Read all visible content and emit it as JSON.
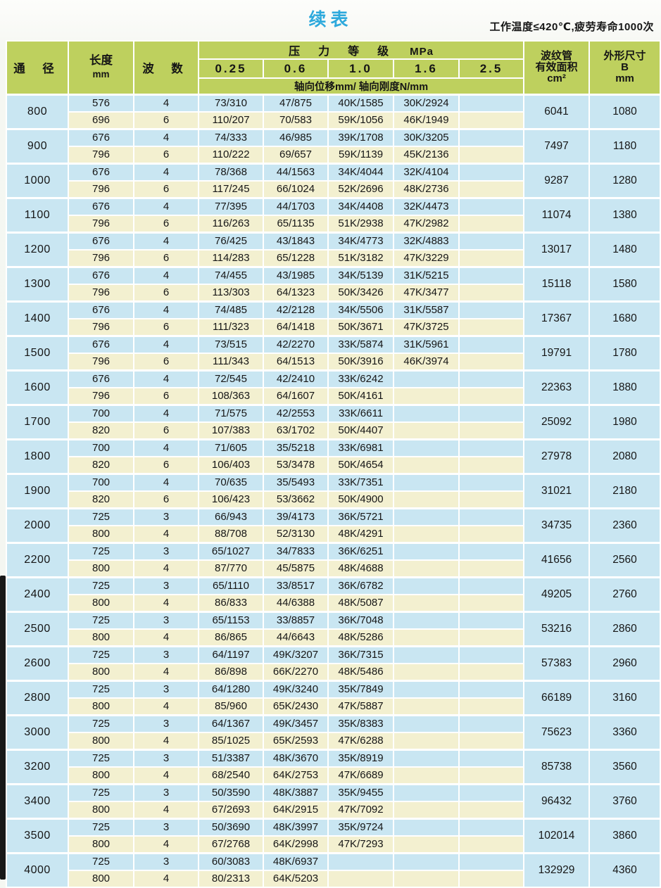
{
  "page": {
    "title": "续表",
    "note": "工作温度≤420℃,疲劳寿命1000次"
  },
  "colors": {
    "header_green": "#bed05e",
    "row_blue": "#c9e6f2",
    "row_yellow": "#f3f0d0",
    "title_blue": "#2da9dc"
  },
  "table": {
    "headers": {
      "dn": "通 径",
      "length": "长度",
      "length_unit": "mm",
      "waves": "波 数",
      "pressure_title": "压力等级",
      "pressure_unit": "MPa",
      "pressure_levels": [
        "0.25",
        "0.6",
        "1.0",
        "1.6",
        "2.5"
      ],
      "sub_note": "轴向位移mm/ 轴向刚度N/mm",
      "area_line1": "波纹管",
      "area_line2": "有效面积",
      "area_unit": "cm²",
      "b_line1": "外形尺寸",
      "b_line2": "B",
      "b_unit": "mm"
    },
    "groups": [
      {
        "dn": "800",
        "area": "6041",
        "b": "1080",
        "rows": [
          {
            "len": "576",
            "waves": "4",
            "p": [
              "73/310",
              "47/875",
              "40K/1585",
              "30K/2924",
              ""
            ]
          },
          {
            "len": "696",
            "waves": "6",
            "p": [
              "110/207",
              "70/583",
              "59K/1056",
              "46K/1949",
              ""
            ]
          }
        ]
      },
      {
        "dn": "900",
        "area": "7497",
        "b": "1180",
        "rows": [
          {
            "len": "676",
            "waves": "4",
            "p": [
              "74/333",
              "46/985",
              "39K/1708",
              "30K/3205",
              ""
            ]
          },
          {
            "len": "796",
            "waves": "6",
            "p": [
              "110/222",
              "69/657",
              "59K/1139",
              "45K/2136",
              ""
            ]
          }
        ]
      },
      {
        "dn": "1000",
        "area": "9287",
        "b": "1280",
        "rows": [
          {
            "len": "676",
            "waves": "4",
            "p": [
              "78/368",
              "44/1563",
              "34K/4044",
              "32K/4104",
              ""
            ]
          },
          {
            "len": "796",
            "waves": "6",
            "p": [
              "117/245",
              "66/1024",
              "52K/2696",
              "48K/2736",
              ""
            ]
          }
        ]
      },
      {
        "dn": "1100",
        "area": "11074",
        "b": "1380",
        "rows": [
          {
            "len": "676",
            "waves": "4",
            "p": [
              "77/395",
              "44/1703",
              "34K/4408",
              "32K/4473",
              ""
            ]
          },
          {
            "len": "796",
            "waves": "6",
            "p": [
              "116/263",
              "65/1135",
              "51K/2938",
              "47K/2982",
              ""
            ]
          }
        ]
      },
      {
        "dn": "1200",
        "area": "13017",
        "b": "1480",
        "rows": [
          {
            "len": "676",
            "waves": "4",
            "p": [
              "76/425",
              "43/1843",
              "34K/4773",
              "32K/4883",
              ""
            ]
          },
          {
            "len": "796",
            "waves": "6",
            "p": [
              "114/283",
              "65/1228",
              "51K/3182",
              "47K/3229",
              ""
            ]
          }
        ]
      },
      {
        "dn": "1300",
        "area": "15118",
        "b": "1580",
        "rows": [
          {
            "len": "676",
            "waves": "4",
            "p": [
              "74/455",
              "43/1985",
              "34K/5139",
              "31K/5215",
              ""
            ]
          },
          {
            "len": "796",
            "waves": "6",
            "p": [
              "113/303",
              "64/1323",
              "50K/3426",
              "47K/3477",
              ""
            ]
          }
        ]
      },
      {
        "dn": "1400",
        "area": "17367",
        "b": "1680",
        "rows": [
          {
            "len": "676",
            "waves": "4",
            "p": [
              "74/485",
              "42/2128",
              "34K/5506",
              "31K/5587",
              ""
            ]
          },
          {
            "len": "796",
            "waves": "6",
            "p": [
              "111/323",
              "64/1418",
              "50K/3671",
              "47K/3725",
              ""
            ]
          }
        ]
      },
      {
        "dn": "1500",
        "area": "19791",
        "b": "1780",
        "rows": [
          {
            "len": "676",
            "waves": "4",
            "p": [
              "73/515",
              "42/2270",
              "33K/5874",
              "31K/5961",
              ""
            ]
          },
          {
            "len": "796",
            "waves": "6",
            "p": [
              "111/343",
              "64/1513",
              "50K/3916",
              "46K/3974",
              ""
            ]
          }
        ]
      },
      {
        "dn": "1600",
        "area": "22363",
        "b": "1880",
        "rows": [
          {
            "len": "676",
            "waves": "4",
            "p": [
              "72/545",
              "42/2410",
              "33K/6242",
              "",
              ""
            ]
          },
          {
            "len": "796",
            "waves": "6",
            "p": [
              "108/363",
              "64/1607",
              "50K/4161",
              "",
              ""
            ]
          }
        ]
      },
      {
        "dn": "1700",
        "area": "25092",
        "b": "1980",
        "rows": [
          {
            "len": "700",
            "waves": "4",
            "p": [
              "71/575",
              "42/2553",
              "33K/6611",
              "",
              ""
            ]
          },
          {
            "len": "820",
            "waves": "6",
            "p": [
              "107/383",
              "63/1702",
              "50K/4407",
              "",
              ""
            ]
          }
        ]
      },
      {
        "dn": "1800",
        "area": "27978",
        "b": "2080",
        "rows": [
          {
            "len": "700",
            "waves": "4",
            "p": [
              "71/605",
              "35/5218",
              "33K/6981",
              "",
              ""
            ]
          },
          {
            "len": "820",
            "waves": "6",
            "p": [
              "106/403",
              "53/3478",
              "50K/4654",
              "",
              ""
            ]
          }
        ]
      },
      {
        "dn": "1900",
        "area": "31021",
        "b": "2180",
        "rows": [
          {
            "len": "700",
            "waves": "4",
            "p": [
              "70/635",
              "35/5493",
              "33K/7351",
              "",
              ""
            ]
          },
          {
            "len": "820",
            "waves": "6",
            "p": [
              "106/423",
              "53/3662",
              "50K/4900",
              "",
              ""
            ]
          }
        ]
      },
      {
        "dn": "2000",
        "area": "34735",
        "b": "2360",
        "rows": [
          {
            "len": "725",
            "waves": "3",
            "p": [
              "66/943",
              "39/4173",
              "36K/5721",
              "",
              ""
            ]
          },
          {
            "len": "800",
            "waves": "4",
            "p": [
              "88/708",
              "52/3130",
              "48K/4291",
              "",
              ""
            ]
          }
        ]
      },
      {
        "dn": "2200",
        "area": "41656",
        "b": "2560",
        "rows": [
          {
            "len": "725",
            "waves": "3",
            "p": [
              "65/1027",
              "34/7833",
              "36K/6251",
              "",
              ""
            ]
          },
          {
            "len": "800",
            "waves": "4",
            "p": [
              "87/770",
              "45/5875",
              "48K/4688",
              "",
              ""
            ]
          }
        ]
      },
      {
        "dn": "2400",
        "area": "49205",
        "b": "2760",
        "rows": [
          {
            "len": "725",
            "waves": "3",
            "p": [
              "65/1110",
              "33/8517",
              "36K/6782",
              "",
              ""
            ]
          },
          {
            "len": "800",
            "waves": "4",
            "p": [
              "86/833",
              "44/6388",
              "48K/5087",
              "",
              ""
            ]
          }
        ]
      },
      {
        "dn": "2500",
        "area": "53216",
        "b": "2860",
        "rows": [
          {
            "len": "725",
            "waves": "3",
            "p": [
              "65/1153",
              "33/8857",
              "36K/7048",
              "",
              ""
            ]
          },
          {
            "len": "800",
            "waves": "4",
            "p": [
              "86/865",
              "44/6643",
              "48K/5286",
              "",
              ""
            ]
          }
        ]
      },
      {
        "dn": "2600",
        "area": "57383",
        "b": "2960",
        "rows": [
          {
            "len": "725",
            "waves": "3",
            "p": [
              "64/1197",
              "49K/3207",
              "36K/7315",
              "",
              ""
            ]
          },
          {
            "len": "800",
            "waves": "4",
            "p": [
              "86/898",
              "66K/2270",
              "48K/5486",
              "",
              ""
            ]
          }
        ]
      },
      {
        "dn": "2800",
        "area": "66189",
        "b": "3160",
        "rows": [
          {
            "len": "725",
            "waves": "3",
            "p": [
              "64/1280",
              "49K/3240",
              "35K/7849",
              "",
              ""
            ]
          },
          {
            "len": "800",
            "waves": "4",
            "p": [
              "85/960",
              "65K/2430",
              "47K/5887",
              "",
              ""
            ]
          }
        ]
      },
      {
        "dn": "3000",
        "area": "75623",
        "b": "3360",
        "rows": [
          {
            "len": "725",
            "waves": "3",
            "p": [
              "64/1367",
              "49K/3457",
              "35K/8383",
              "",
              ""
            ]
          },
          {
            "len": "800",
            "waves": "4",
            "p": [
              "85/1025",
              "65K/2593",
              "47K/6288",
              "",
              ""
            ]
          }
        ]
      },
      {
        "dn": "3200",
        "area": "85738",
        "b": "3560",
        "rows": [
          {
            "len": "725",
            "waves": "3",
            "p": [
              "51/3387",
              "48K/3670",
              "35K/8919",
              "",
              ""
            ]
          },
          {
            "len": "800",
            "waves": "4",
            "p": [
              "68/2540",
              "64K/2753",
              "47K/6689",
              "",
              ""
            ]
          }
        ]
      },
      {
        "dn": "3400",
        "area": "96432",
        "b": "3760",
        "rows": [
          {
            "len": "725",
            "waves": "3",
            "p": [
              "50/3590",
              "48K/3887",
              "35K/9455",
              "",
              ""
            ]
          },
          {
            "len": "800",
            "waves": "4",
            "p": [
              "67/2693",
              "64K/2915",
              "47K/7092",
              "",
              ""
            ]
          }
        ]
      },
      {
        "dn": "3500",
        "area": "102014",
        "b": "3860",
        "rows": [
          {
            "len": "725",
            "waves": "3",
            "p": [
              "50/3690",
              "48K/3997",
              "35K/9724",
              "",
              ""
            ]
          },
          {
            "len": "800",
            "waves": "4",
            "p": [
              "67/2768",
              "64K/2998",
              "47K/7293",
              "",
              ""
            ]
          }
        ]
      },
      {
        "dn": "4000",
        "area": "132929",
        "b": "4360",
        "rows": [
          {
            "len": "725",
            "waves": "3",
            "p": [
              "60/3083",
              "48K/6937",
              "",
              "",
              ""
            ]
          },
          {
            "len": "800",
            "waves": "4",
            "p": [
              "80/2313",
              "64K/5203",
              "",
              "",
              ""
            ]
          }
        ]
      }
    ]
  }
}
